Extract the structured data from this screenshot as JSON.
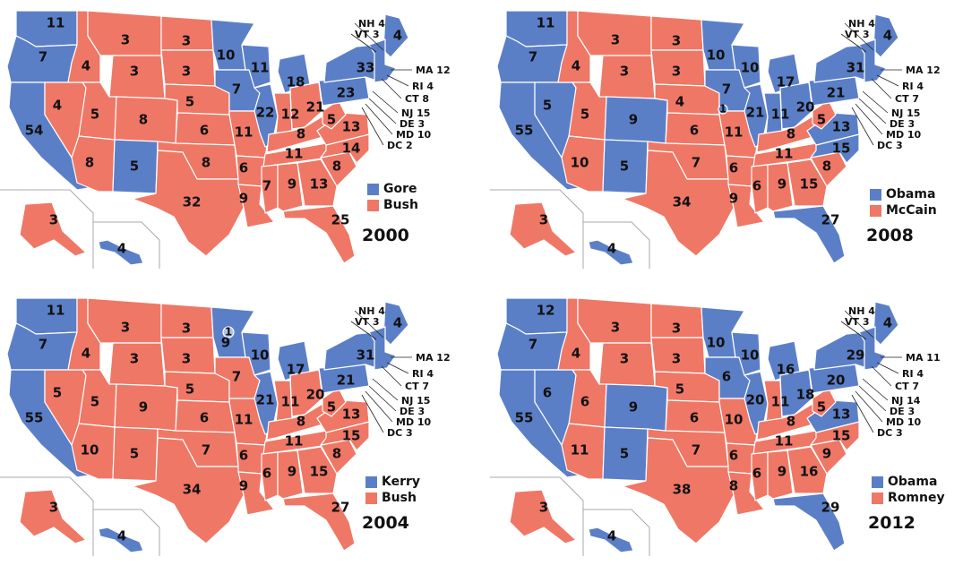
{
  "colors": {
    "dem": "#5b7fc7",
    "rep": "#ef7766",
    "border": "#ffffff",
    "inset_line": "#a9a9a9"
  },
  "maps": [
    {
      "year": "2000",
      "legend": [
        {
          "label": "Gore",
          "party": "dem"
        },
        {
          "label": "Bush",
          "party": "rep"
        }
      ],
      "states": {
        "WA": {
          "ev": "11",
          "p": "dem"
        },
        "OR": {
          "ev": "7",
          "p": "dem"
        },
        "CA": {
          "ev": "54",
          "p": "dem"
        },
        "NV": {
          "ev": "4",
          "p": "rep"
        },
        "ID": {
          "ev": "4",
          "p": "rep"
        },
        "MT": {
          "ev": "3",
          "p": "rep"
        },
        "WY": {
          "ev": "3",
          "p": "rep"
        },
        "UT": {
          "ev": "5",
          "p": "rep"
        },
        "CO": {
          "ev": "8",
          "p": "rep"
        },
        "AZ": {
          "ev": "8",
          "p": "rep"
        },
        "NM": {
          "ev": "5",
          "p": "dem"
        },
        "ND": {
          "ev": "3",
          "p": "rep"
        },
        "SD": {
          "ev": "3",
          "p": "rep"
        },
        "NE": {
          "ev": "5",
          "p": "rep"
        },
        "KS": {
          "ev": "6",
          "p": "rep"
        },
        "OK": {
          "ev": "8",
          "p": "rep"
        },
        "TX": {
          "ev": "32",
          "p": "rep"
        },
        "MN": {
          "ev": "10",
          "p": "dem"
        },
        "IA": {
          "ev": "7",
          "p": "dem"
        },
        "MO": {
          "ev": "11",
          "p": "rep"
        },
        "AR": {
          "ev": "6",
          "p": "rep"
        },
        "LA": {
          "ev": "9",
          "p": "rep"
        },
        "WI": {
          "ev": "11",
          "p": "dem"
        },
        "IL": {
          "ev": "22",
          "p": "dem"
        },
        "MI": {
          "ev": "18",
          "p": "dem"
        },
        "IN": {
          "ev": "12",
          "p": "rep"
        },
        "OH": {
          "ev": "21",
          "p": "rep"
        },
        "KY": {
          "ev": "8",
          "p": "rep"
        },
        "TN": {
          "ev": "11",
          "p": "rep"
        },
        "MS": {
          "ev": "7",
          "p": "rep"
        },
        "AL": {
          "ev": "9",
          "p": "rep"
        },
        "GA": {
          "ev": "13",
          "p": "rep"
        },
        "FL": {
          "ev": "25",
          "p": "rep"
        },
        "SC": {
          "ev": "8",
          "p": "rep"
        },
        "NC": {
          "ev": "14",
          "p": "rep"
        },
        "VA": {
          "ev": "13",
          "p": "rep"
        },
        "WV": {
          "ev": "5",
          "p": "rep"
        },
        "PA": {
          "ev": "23",
          "p": "dem"
        },
        "NY": {
          "ev": "33",
          "p": "dem"
        },
        "ME": {
          "ev": "4",
          "p": "dem"
        },
        "NE_NEW": {
          "ev": "",
          "p": "dem"
        },
        "AK": {
          "ev": "3",
          "p": "rep"
        },
        "HI": {
          "ev": "4",
          "p": "dem"
        }
      },
      "callouts": [
        {
          "text": "NH 4",
          "p": "rep"
        },
        {
          "text": "VT 3",
          "p": "dem"
        },
        {
          "text": "MA 12",
          "p": "dem"
        },
        {
          "text": "RI 4",
          "p": "dem"
        },
        {
          "text": "CT 8",
          "p": "dem"
        },
        {
          "text": "NJ 15",
          "p": "dem"
        },
        {
          "text": "DE 3",
          "p": "dem"
        },
        {
          "text": "MD 10",
          "p": "dem"
        },
        {
          "text": "DC 2",
          "p": "dem"
        }
      ]
    },
    {
      "year": "2008",
      "legend": [
        {
          "label": "Obama",
          "party": "dem"
        },
        {
          "label": "McCain",
          "party": "rep"
        }
      ],
      "states": {
        "WA": {
          "ev": "11",
          "p": "dem"
        },
        "OR": {
          "ev": "7",
          "p": "dem"
        },
        "CA": {
          "ev": "55",
          "p": "dem"
        },
        "NV": {
          "ev": "5",
          "p": "dem"
        },
        "ID": {
          "ev": "4",
          "p": "rep"
        },
        "MT": {
          "ev": "3",
          "p": "rep"
        },
        "WY": {
          "ev": "3",
          "p": "rep"
        },
        "UT": {
          "ev": "5",
          "p": "rep"
        },
        "CO": {
          "ev": "9",
          "p": "dem"
        },
        "AZ": {
          "ev": "10",
          "p": "rep"
        },
        "NM": {
          "ev": "5",
          "p": "dem"
        },
        "ND": {
          "ev": "3",
          "p": "rep"
        },
        "SD": {
          "ev": "3",
          "p": "rep"
        },
        "NE": {
          "ev": "4",
          "p": "rep"
        },
        "KS": {
          "ev": "6",
          "p": "rep"
        },
        "OK": {
          "ev": "7",
          "p": "rep"
        },
        "TX": {
          "ev": "34",
          "p": "rep"
        },
        "MN": {
          "ev": "10",
          "p": "dem"
        },
        "IA": {
          "ev": "7",
          "p": "dem"
        },
        "MO": {
          "ev": "11",
          "p": "rep"
        },
        "AR": {
          "ev": "6",
          "p": "rep"
        },
        "LA": {
          "ev": "9",
          "p": "rep"
        },
        "WI": {
          "ev": "10",
          "p": "dem"
        },
        "IL": {
          "ev": "21",
          "p": "dem"
        },
        "MI": {
          "ev": "17",
          "p": "dem"
        },
        "IN": {
          "ev": "11",
          "p": "dem"
        },
        "OH": {
          "ev": "20",
          "p": "dem"
        },
        "KY": {
          "ev": "8",
          "p": "rep"
        },
        "TN": {
          "ev": "11",
          "p": "rep"
        },
        "MS": {
          "ev": "6",
          "p": "rep"
        },
        "AL": {
          "ev": "9",
          "p": "rep"
        },
        "GA": {
          "ev": "15",
          "p": "rep"
        },
        "FL": {
          "ev": "27",
          "p": "dem"
        },
        "SC": {
          "ev": "8",
          "p": "rep"
        },
        "NC": {
          "ev": "15",
          "p": "dem"
        },
        "VA": {
          "ev": "13",
          "p": "dem"
        },
        "WV": {
          "ev": "5",
          "p": "rep"
        },
        "PA": {
          "ev": "21",
          "p": "dem"
        },
        "NY": {
          "ev": "31",
          "p": "dem"
        },
        "ME": {
          "ev": "4",
          "p": "dem"
        },
        "NE_NEW": {
          "ev": "",
          "p": "dem"
        },
        "AK": {
          "ev": "3",
          "p": "rep"
        },
        "HI": {
          "ev": "4",
          "p": "dem"
        },
        "NE2": {
          "ev": "1",
          "p": "dem"
        }
      },
      "callouts": [
        {
          "text": "NH 4",
          "p": "dem"
        },
        {
          "text": "VT 3",
          "p": "dem"
        },
        {
          "text": "MA 12",
          "p": "dem"
        },
        {
          "text": "RI 4",
          "p": "dem"
        },
        {
          "text": "CT 7",
          "p": "dem"
        },
        {
          "text": "NJ 15",
          "p": "dem"
        },
        {
          "text": "DE 3",
          "p": "dem"
        },
        {
          "text": "MD 10",
          "p": "dem"
        },
        {
          "text": "DC 3",
          "p": "dem"
        }
      ]
    },
    {
      "year": "2004",
      "legend": [
        {
          "label": "Kerry",
          "party": "dem"
        },
        {
          "label": "Bush",
          "party": "rep"
        }
      ],
      "states": {
        "WA": {
          "ev": "11",
          "p": "dem"
        },
        "OR": {
          "ev": "7",
          "p": "dem"
        },
        "CA": {
          "ev": "55",
          "p": "dem"
        },
        "NV": {
          "ev": "5",
          "p": "rep"
        },
        "ID": {
          "ev": "4",
          "p": "rep"
        },
        "MT": {
          "ev": "3",
          "p": "rep"
        },
        "WY": {
          "ev": "3",
          "p": "rep"
        },
        "UT": {
          "ev": "5",
          "p": "rep"
        },
        "CO": {
          "ev": "9",
          "p": "rep"
        },
        "AZ": {
          "ev": "10",
          "p": "rep"
        },
        "NM": {
          "ev": "5",
          "p": "rep"
        },
        "ND": {
          "ev": "3",
          "p": "rep"
        },
        "SD": {
          "ev": "3",
          "p": "rep"
        },
        "NE": {
          "ev": "5",
          "p": "rep"
        },
        "KS": {
          "ev": "6",
          "p": "rep"
        },
        "OK": {
          "ev": "7",
          "p": "rep"
        },
        "TX": {
          "ev": "34",
          "p": "rep"
        },
        "MN": {
          "ev": "9",
          "p": "dem"
        },
        "IA": {
          "ev": "7",
          "p": "rep"
        },
        "MO": {
          "ev": "11",
          "p": "rep"
        },
        "AR": {
          "ev": "6",
          "p": "rep"
        },
        "LA": {
          "ev": "9",
          "p": "rep"
        },
        "WI": {
          "ev": "10",
          "p": "dem"
        },
        "IL": {
          "ev": "21",
          "p": "dem"
        },
        "MI": {
          "ev": "17",
          "p": "dem"
        },
        "IN": {
          "ev": "11",
          "p": "rep"
        },
        "OH": {
          "ev": "20",
          "p": "rep"
        },
        "KY": {
          "ev": "8",
          "p": "rep"
        },
        "TN": {
          "ev": "11",
          "p": "rep"
        },
        "MS": {
          "ev": "6",
          "p": "rep"
        },
        "AL": {
          "ev": "9",
          "p": "rep"
        },
        "GA": {
          "ev": "15",
          "p": "rep"
        },
        "FL": {
          "ev": "27",
          "p": "rep"
        },
        "SC": {
          "ev": "8",
          "p": "rep"
        },
        "NC": {
          "ev": "15",
          "p": "rep"
        },
        "VA": {
          "ev": "13",
          "p": "rep"
        },
        "WV": {
          "ev": "5",
          "p": "rep"
        },
        "PA": {
          "ev": "21",
          "p": "dem"
        },
        "NY": {
          "ev": "31",
          "p": "dem"
        },
        "ME": {
          "ev": "4",
          "p": "dem"
        },
        "NE_NEW": {
          "ev": "",
          "p": "dem"
        },
        "AK": {
          "ev": "3",
          "p": "rep"
        },
        "HI": {
          "ev": "4",
          "p": "dem"
        },
        "MN1": {
          "ev": "1",
          "p": "faithless"
        }
      },
      "callouts": [
        {
          "text": "NH 4",
          "p": "dem"
        },
        {
          "text": "VT 3",
          "p": "dem"
        },
        {
          "text": "MA 12",
          "p": "dem"
        },
        {
          "text": "RI 4",
          "p": "dem"
        },
        {
          "text": "CT 7",
          "p": "dem"
        },
        {
          "text": "NJ 15",
          "p": "dem"
        },
        {
          "text": "DE 3",
          "p": "dem"
        },
        {
          "text": "MD 10",
          "p": "dem"
        },
        {
          "text": "DC 3",
          "p": "dem"
        }
      ]
    },
    {
      "year": "2012",
      "legend": [
        {
          "label": "Obama",
          "party": "dem"
        },
        {
          "label": "Romney",
          "party": "rep"
        }
      ],
      "states": {
        "WA": {
          "ev": "12",
          "p": "dem"
        },
        "OR": {
          "ev": "7",
          "p": "dem"
        },
        "CA": {
          "ev": "55",
          "p": "dem"
        },
        "NV": {
          "ev": "6",
          "p": "dem"
        },
        "ID": {
          "ev": "4",
          "p": "rep"
        },
        "MT": {
          "ev": "3",
          "p": "rep"
        },
        "WY": {
          "ev": "3",
          "p": "rep"
        },
        "UT": {
          "ev": "6",
          "p": "rep"
        },
        "CO": {
          "ev": "9",
          "p": "dem"
        },
        "AZ": {
          "ev": "11",
          "p": "rep"
        },
        "NM": {
          "ev": "5",
          "p": "dem"
        },
        "ND": {
          "ev": "3",
          "p": "rep"
        },
        "SD": {
          "ev": "3",
          "p": "rep"
        },
        "NE": {
          "ev": "5",
          "p": "rep"
        },
        "KS": {
          "ev": "6",
          "p": "rep"
        },
        "OK": {
          "ev": "7",
          "p": "rep"
        },
        "TX": {
          "ev": "38",
          "p": "rep"
        },
        "MN": {
          "ev": "10",
          "p": "dem"
        },
        "IA": {
          "ev": "6",
          "p": "dem"
        },
        "MO": {
          "ev": "10",
          "p": "rep"
        },
        "AR": {
          "ev": "6",
          "p": "rep"
        },
        "LA": {
          "ev": "8",
          "p": "rep"
        },
        "WI": {
          "ev": "10",
          "p": "dem"
        },
        "IL": {
          "ev": "20",
          "p": "dem"
        },
        "MI": {
          "ev": "16",
          "p": "dem"
        },
        "IN": {
          "ev": "11",
          "p": "rep"
        },
        "OH": {
          "ev": "18",
          "p": "dem"
        },
        "KY": {
          "ev": "8",
          "p": "rep"
        },
        "TN": {
          "ev": "11",
          "p": "rep"
        },
        "MS": {
          "ev": "6",
          "p": "rep"
        },
        "AL": {
          "ev": "9",
          "p": "rep"
        },
        "GA": {
          "ev": "16",
          "p": "rep"
        },
        "FL": {
          "ev": "29",
          "p": "dem"
        },
        "SC": {
          "ev": "9",
          "p": "rep"
        },
        "NC": {
          "ev": "15",
          "p": "rep"
        },
        "VA": {
          "ev": "13",
          "p": "dem"
        },
        "WV": {
          "ev": "5",
          "p": "rep"
        },
        "PA": {
          "ev": "20",
          "p": "dem"
        },
        "NY": {
          "ev": "29",
          "p": "dem"
        },
        "ME": {
          "ev": "4",
          "p": "dem"
        },
        "NE_NEW": {
          "ev": "",
          "p": "dem"
        },
        "AK": {
          "ev": "3",
          "p": "rep"
        },
        "HI": {
          "ev": "4",
          "p": "dem"
        }
      },
      "callouts": [
        {
          "text": "NH 4",
          "p": "dem"
        },
        {
          "text": "VT 3",
          "p": "dem"
        },
        {
          "text": "MA 11",
          "p": "dem"
        },
        {
          "text": "RI 4",
          "p": "dem"
        },
        {
          "text": "CT 7",
          "p": "dem"
        },
        {
          "text": "NJ 14",
          "p": "dem"
        },
        {
          "text": "DE 3",
          "p": "dem"
        },
        {
          "text": "MD 10",
          "p": "dem"
        },
        {
          "text": "DC 3",
          "p": "dem"
        }
      ]
    }
  ]
}
